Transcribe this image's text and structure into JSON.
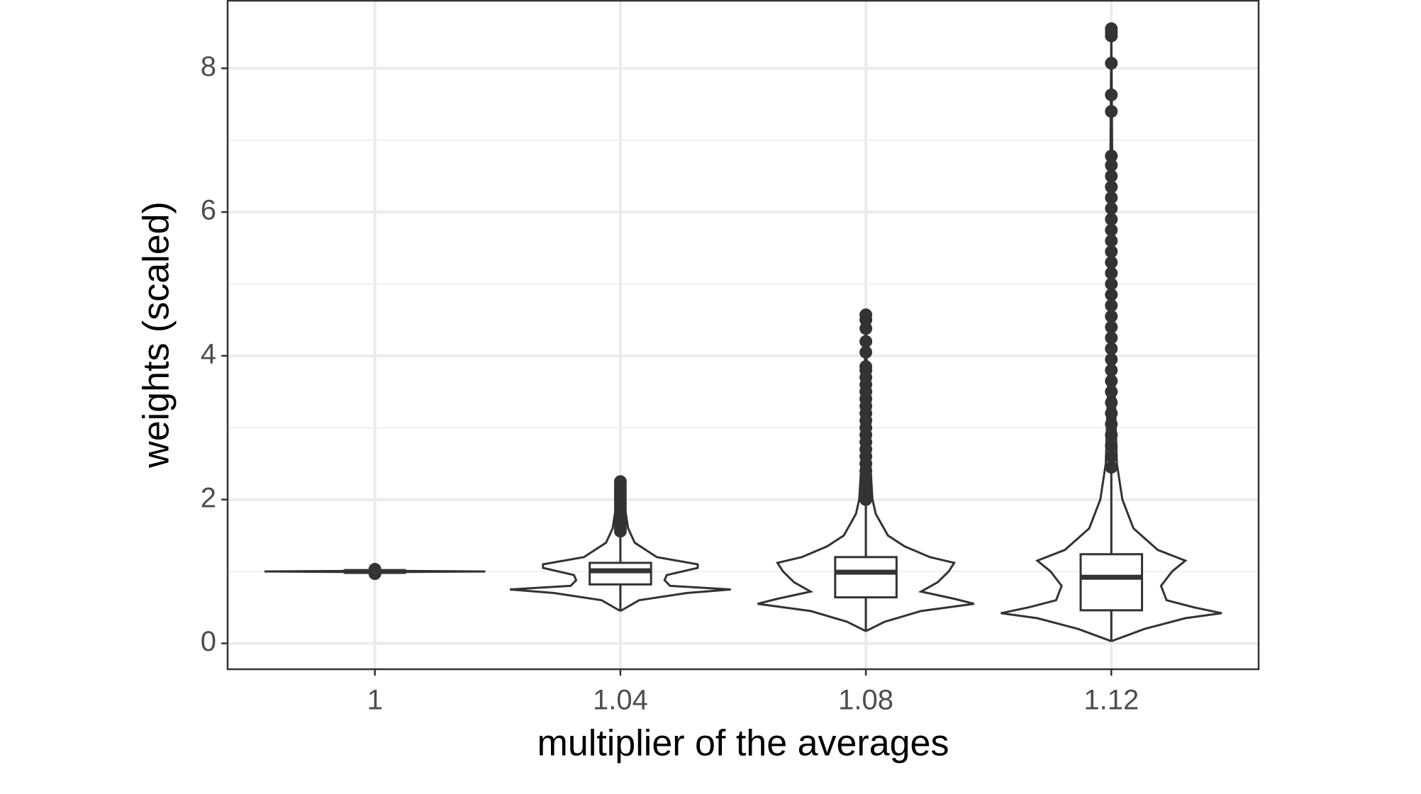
{
  "chart_data": {
    "type": "violin-box",
    "x_label": "multiplier of the averages",
    "y_label": "weights (scaled)",
    "categories": [
      "1",
      "1.04",
      "1.08",
      "1.12"
    ],
    "ylim": [
      -0.36,
      8.95
    ],
    "yticks": [
      0,
      2,
      4,
      6,
      8
    ],
    "minor_yticks": [
      1,
      3,
      5,
      7
    ],
    "grid": true,
    "color": "#333333",
    "boxes": [
      {
        "q1": 0.99,
        "median": 1.0,
        "q3": 1.01,
        "whisker_low": 0.98,
        "whisker_high": 1.02,
        "outliers": [
          0.97,
          1.0,
          1.03
        ],
        "violin_y": [
          0.99,
          1.0,
          1.01
        ],
        "violin_w": [
          0,
          1,
          0
        ]
      },
      {
        "q1": 0.82,
        "median": 1.01,
        "q3": 1.12,
        "whisker_low": 0.45,
        "whisker_high": 1.55,
        "outliers": [
          1.56,
          1.6,
          1.65,
          1.7,
          1.75,
          1.8,
          1.85,
          1.9,
          1.95,
          2.0,
          2.05,
          2.1,
          2.15,
          2.2,
          2.25
        ],
        "violin_y": [
          0.45,
          0.6,
          0.7,
          0.75,
          0.8,
          0.88,
          0.95,
          1.05,
          1.1,
          1.2,
          1.4,
          1.6,
          2.0,
          2.25
        ],
        "violin_w": [
          0,
          0.17,
          0.6,
          1.0,
          0.45,
          0.4,
          0.42,
          0.7,
          0.7,
          0.33,
          0.13,
          0.07,
          0.03,
          0
        ]
      },
      {
        "q1": 0.64,
        "median": 0.99,
        "q3": 1.2,
        "whisker_low": 0.17,
        "whisker_high": 1.95,
        "outliers": [
          2.0,
          2.1,
          2.2,
          2.3,
          2.4,
          2.5,
          2.6,
          2.7,
          2.8,
          2.9,
          3.0,
          3.1,
          3.2,
          3.3,
          3.4,
          3.5,
          3.6,
          3.7,
          3.8,
          3.85,
          4.05,
          4.2,
          4.38,
          4.5,
          4.57
        ],
        "violin_y": [
          0.17,
          0.3,
          0.45,
          0.55,
          0.62,
          0.72,
          0.85,
          1.0,
          1.12,
          1.2,
          1.35,
          1.5,
          1.8,
          2.0,
          3.0,
          4.57
        ],
        "violin_w": [
          0,
          0.17,
          0.5,
          0.98,
          0.8,
          0.5,
          0.65,
          0.75,
          0.8,
          0.58,
          0.35,
          0.2,
          0.09,
          0.06,
          0.02,
          0
        ]
      },
      {
        "q1": 0.46,
        "median": 0.92,
        "q3": 1.24,
        "whisker_low": 0.03,
        "whisker_high": 2.4,
        "outliers": [
          2.45,
          2.6,
          2.75,
          2.9,
          3.05,
          3.2,
          3.35,
          3.5,
          3.65,
          3.8,
          3.95,
          4.1,
          4.25,
          4.4,
          4.55,
          4.7,
          4.85,
          5.0,
          5.15,
          5.3,
          5.45,
          5.6,
          5.75,
          5.9,
          6.05,
          6.2,
          6.35,
          6.5,
          6.65,
          6.78,
          7.4,
          7.63,
          8.07,
          8.45,
          8.5,
          8.55
        ],
        "violin_y": [
          0.03,
          0.2,
          0.35,
          0.42,
          0.5,
          0.6,
          0.8,
          1.0,
          1.15,
          1.3,
          1.6,
          2.0,
          2.5,
          4.0,
          8.55
        ],
        "violin_w": [
          0,
          0.3,
          0.67,
          1.0,
          0.75,
          0.5,
          0.45,
          0.55,
          0.67,
          0.42,
          0.2,
          0.1,
          0.05,
          0.02,
          0
        ]
      }
    ]
  }
}
